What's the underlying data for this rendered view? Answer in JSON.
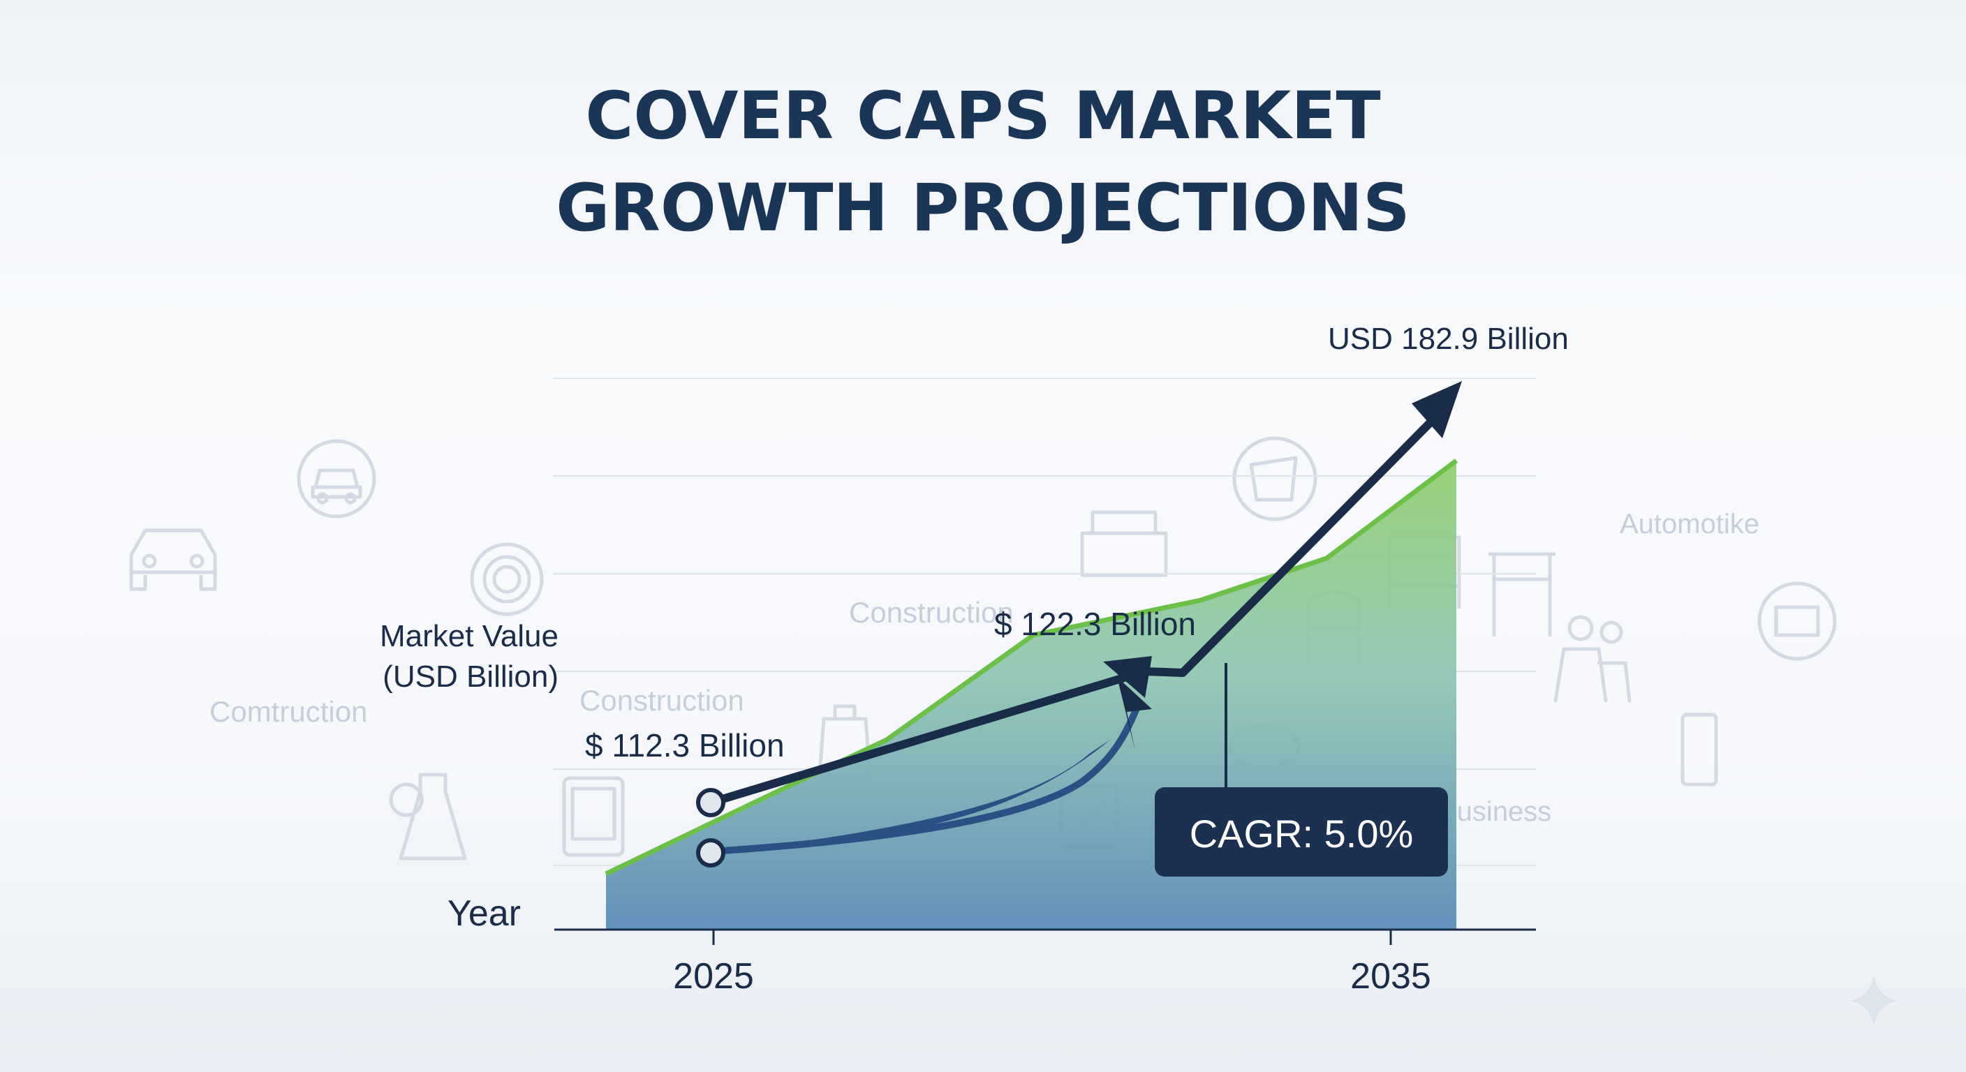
{
  "title_lines": [
    "COVER CAPS MARKET",
    "GROWTH PROJECTIONS"
  ],
  "chart_data": {
    "type": "area",
    "title": "COVER CAPS MARKET GROWTH PROJECTIONS",
    "ylabel_lines": [
      "Market Value",
      "(USD Billion)"
    ],
    "xlabel": "Year",
    "x_ticks": [
      "2025",
      "2035"
    ],
    "series": [
      {
        "x": [
          2025,
          2035
        ],
        "values": [
          112.3,
          182.9
        ]
      }
    ],
    "annotations": {
      "start": "$ 112.3 Billion",
      "mid": "$ 122.3 Billion",
      "end": "USD 182.9 Billion",
      "cagr": "CAGR: 5.0%"
    },
    "grid": true
  },
  "background_words": [
    "Construction",
    "Construction",
    "Comtruction",
    "Automotike",
    "Business"
  ],
  "background_icons": [
    "car-icon",
    "car-outline-icon",
    "gear-icon",
    "medicine-bottle-icon",
    "mobile-phone-icon",
    "cup-icon",
    "chair-icon",
    "table-icon",
    "sofa-icon",
    "people-icon",
    "bag-icon",
    "tools-icon",
    "crate-icon",
    "tablet-icon",
    "cushion-icon"
  ],
  "colors": {
    "title": "#1b3557",
    "arrow": "#1b2c48",
    "area_top": "#8ec972",
    "area_bottom": "#5f8fb8",
    "line_green": "#6cc04a",
    "badge": "#1c3150"
  }
}
